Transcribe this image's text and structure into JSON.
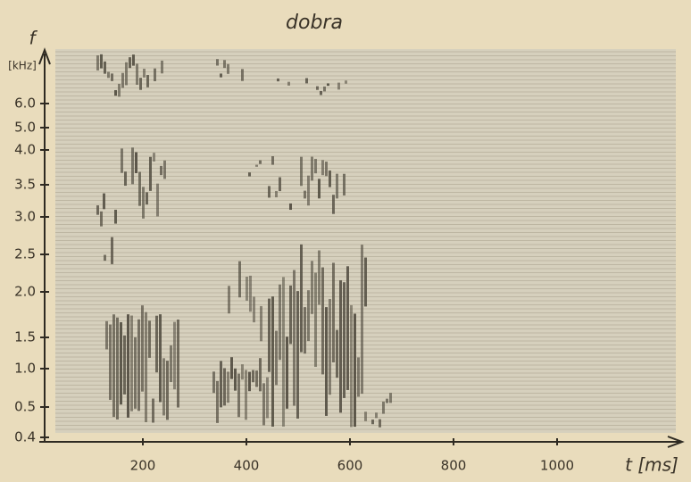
{
  "chart_data": {
    "type": "spectrogram",
    "title": "dobra",
    "y_label": "f",
    "y_unit": "[kHz]",
    "x_label": "t [ms]",
    "xlim": [
      0,
      1200
    ],
    "xticks": [
      200,
      400,
      600,
      800,
      1000
    ],
    "yticks": [
      0.4,
      0.5,
      {
        "value": 1.0,
        "label": "1.0"
      },
      1.5,
      {
        "value": 2.0,
        "label": "2.0"
      },
      2.5,
      {
        "value": 3.0,
        "label": "3.0"
      },
      3.5,
      {
        "value": 4.0,
        "label": "4.0"
      },
      {
        "value": 5.0,
        "label": "5.0"
      },
      {
        "value": 6.0,
        "label": "6.0"
      }
    ]
  }
}
